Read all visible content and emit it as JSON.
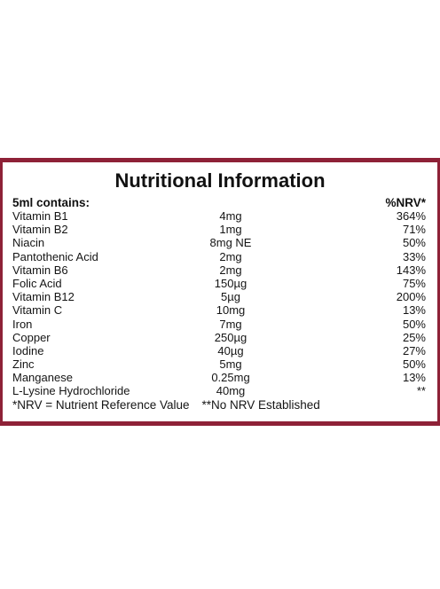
{
  "colors": {
    "border": "#8e2137",
    "text": "#151515",
    "background": "#ffffff"
  },
  "label": {
    "title": "Nutritional Information",
    "contains_label": "5ml contains:",
    "nrv_header": "%NRV*",
    "rows": [
      {
        "name": "Vitamin B1",
        "amount": "4mg",
        "nrv": "364%"
      },
      {
        "name": "Vitamin B2",
        "amount": "1mg",
        "nrv": "71%"
      },
      {
        "name": "Niacin",
        "amount": "8mg NE",
        "nrv": "50%"
      },
      {
        "name": "Pantothenic Acid",
        "amount": "2mg",
        "nrv": "33%"
      },
      {
        "name": "Vitamin B6",
        "amount": "2mg",
        "nrv": "143%"
      },
      {
        "name": "Folic Acid",
        "amount": "150µg",
        "nrv": "75%"
      },
      {
        "name": "Vitamin B12",
        "amount": "5µg",
        "nrv": "200%"
      },
      {
        "name": "Vitamin C",
        "amount": "10mg",
        "nrv": "13%"
      },
      {
        "name": "Iron",
        "amount": "7mg",
        "nrv": "50%"
      },
      {
        "name": "Copper",
        "amount": "250µg",
        "nrv": "25%"
      },
      {
        "name": "Iodine",
        "amount": "40µg",
        "nrv": "27%"
      },
      {
        "name": "Zinc",
        "amount": "5mg",
        "nrv": "50%"
      },
      {
        "name": "Manganese",
        "amount": "0.25mg",
        "nrv": "13%"
      },
      {
        "name": "L-Lysine Hydrochloride",
        "amount": "40mg",
        "nrv": "**"
      }
    ],
    "footnote_nrv": "*NRV = Nutrient Reference Value",
    "footnote_no_nrv": "**No NRV Established"
  }
}
